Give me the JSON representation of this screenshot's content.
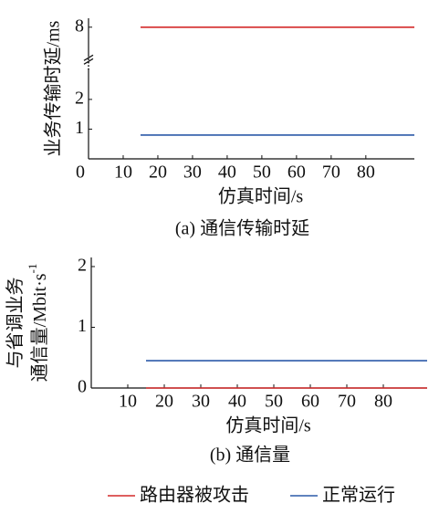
{
  "chart_data": [
    {
      "type": "line",
      "ylabel": "业务传输时延/ms",
      "xlabel": "仿真时间/s",
      "caption": "(a) 通信传输时延",
      "x": [
        15,
        94
      ],
      "xlim": [
        0,
        94
      ],
      "xticks": [
        0,
        10,
        20,
        30,
        40,
        50,
        60,
        70,
        80
      ],
      "ylim": [
        0,
        8.3
      ],
      "ybreak": [
        3,
        7
      ],
      "yticks": [
        1,
        2,
        8
      ],
      "grid": false,
      "series": [
        {
          "name": "路由器被攻击",
          "color": "#d42a2a",
          "values": [
            8,
            8
          ]
        },
        {
          "name": "正常运行",
          "color": "#2b5aa8",
          "values": [
            0.8,
            0.8
          ]
        }
      ]
    },
    {
      "type": "line",
      "ylabel": [
        "与省调业务",
        "通信量/Mbit·s"
      ],
      "ylabel_sup": "-1",
      "xlabel": "仿真时间/s",
      "caption": "(b) 通信量",
      "x": [
        15,
        92
      ],
      "xlim": [
        0,
        92
      ],
      "xticks": [
        10,
        20,
        30,
        40,
        50,
        60,
        70,
        80
      ],
      "ylim": [
        0,
        2.15
      ],
      "yticks": [
        0,
        1,
        2
      ],
      "grid": false,
      "series": [
        {
          "name": "路由器被攻击",
          "color": "#d42a2a",
          "values": [
            0,
            0
          ]
        },
        {
          "name": "正常运行",
          "color": "#2b5aa8",
          "values": [
            0.45,
            0.45
          ]
        }
      ]
    }
  ]
}
